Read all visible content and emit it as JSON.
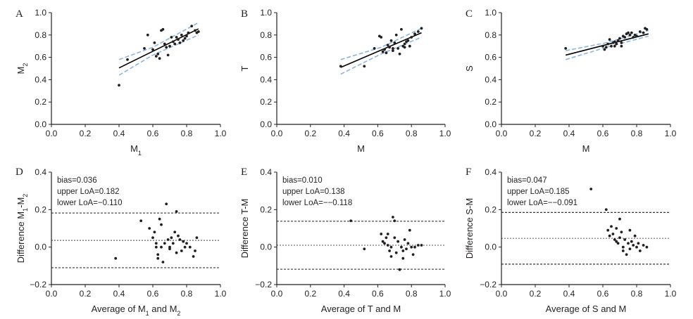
{
  "colors": {
    "data": "#231f20",
    "fit": "#000000",
    "ci": "#8ab6e0"
  },
  "chart_data": [
    {
      "panel": "A",
      "type": "scatter",
      "xlabel": "M",
      "xlabel_sub": "1",
      "ylabel": "M",
      "ylabel_sub": "2",
      "xlim": [
        0,
        1
      ],
      "ylim": [
        0,
        1
      ],
      "xticks": [
        "0.0",
        "0.2",
        "0.4",
        "0.6",
        "0.8",
        "1.0"
      ],
      "yticks": [
        "0.0",
        "0.2",
        "0.4",
        "0.6",
        "0.8",
        "1.0"
      ],
      "points": [
        [
          0.4,
          0.35
        ],
        [
          0.45,
          0.58
        ],
        [
          0.55,
          0.68
        ],
        [
          0.57,
          0.8
        ],
        [
          0.6,
          0.67
        ],
        [
          0.62,
          0.61
        ],
        [
          0.63,
          0.63
        ],
        [
          0.64,
          0.59
        ],
        [
          0.65,
          0.84
        ],
        [
          0.66,
          0.85
        ],
        [
          0.67,
          0.72
        ],
        [
          0.69,
          0.62
        ],
        [
          0.7,
          0.7
        ],
        [
          0.71,
          0.78
        ],
        [
          0.72,
          0.74
        ],
        [
          0.73,
          0.72
        ],
        [
          0.74,
          0.78
        ],
        [
          0.75,
          0.76
        ],
        [
          0.76,
          0.73
        ],
        [
          0.77,
          0.8
        ],
        [
          0.79,
          0.77
        ],
        [
          0.8,
          0.79
        ],
        [
          0.81,
          0.82
        ],
        [
          0.83,
          0.88
        ],
        [
          0.85,
          0.84
        ],
        [
          0.86,
          0.82
        ],
        [
          0.87,
          0.83
        ],
        [
          0.68,
          0.69
        ],
        [
          0.61,
          0.73
        ],
        [
          0.78,
          0.75
        ]
      ],
      "fit": {
        "x": [
          0.4,
          0.87
        ],
        "y": [
          0.505,
          0.855
        ]
      },
      "ci_upper": [
        [
          0.4,
          0.58
        ],
        [
          0.6,
          0.69
        ],
        [
          0.87,
          0.91
        ]
      ],
      "ci_lower": [
        [
          0.4,
          0.44
        ],
        [
          0.6,
          0.62
        ],
        [
          0.87,
          0.8
        ]
      ]
    },
    {
      "panel": "B",
      "type": "scatter",
      "xlabel": "M",
      "xlabel_sub": "",
      "ylabel": "T",
      "ylabel_sub": "",
      "xlim": [
        0,
        1
      ],
      "ylim": [
        0,
        1
      ],
      "xticks": [
        "0.0",
        "0.2",
        "0.4",
        "0.6",
        "0.8",
        "1.0"
      ],
      "yticks": [
        "0.0",
        "0.2",
        "0.4",
        "0.6",
        "0.8",
        "1.0"
      ],
      "points": [
        [
          0.38,
          0.52
        ],
        [
          0.52,
          0.52
        ],
        [
          0.58,
          0.68
        ],
        [
          0.61,
          0.79
        ],
        [
          0.62,
          0.78
        ],
        [
          0.63,
          0.65
        ],
        [
          0.64,
          0.67
        ],
        [
          0.66,
          0.71
        ],
        [
          0.67,
          0.69
        ],
        [
          0.68,
          0.75
        ],
        [
          0.69,
          0.66
        ],
        [
          0.7,
          0.73
        ],
        [
          0.71,
          0.8
        ],
        [
          0.72,
          0.68
        ],
        [
          0.73,
          0.63
        ],
        [
          0.74,
          0.85
        ],
        [
          0.75,
          0.7
        ],
        [
          0.76,
          0.72
        ],
        [
          0.77,
          0.74
        ],
        [
          0.78,
          0.75
        ],
        [
          0.79,
          0.7
        ],
        [
          0.8,
          0.78
        ],
        [
          0.82,
          0.81
        ],
        [
          0.84,
          0.83
        ],
        [
          0.86,
          0.86
        ],
        [
          0.65,
          0.64
        ],
        [
          0.69,
          0.68
        ],
        [
          0.76,
          0.69
        ]
      ],
      "fit": {
        "x": [
          0.38,
          0.86
        ],
        "y": [
          0.51,
          0.82
        ]
      },
      "ci_upper": [
        [
          0.38,
          0.58
        ],
        [
          0.62,
          0.69
        ],
        [
          0.86,
          0.86
        ]
      ],
      "ci_lower": [
        [
          0.38,
          0.45
        ],
        [
          0.62,
          0.63
        ],
        [
          0.86,
          0.78
        ]
      ]
    },
    {
      "panel": "C",
      "type": "scatter",
      "xlabel": "M",
      "xlabel_sub": "",
      "ylabel": "S",
      "ylabel_sub": "",
      "xlim": [
        0,
        1
      ],
      "ylim": [
        0,
        1
      ],
      "xticks": [
        "0.0",
        "0.2",
        "0.4",
        "0.6",
        "0.8",
        "1.0"
      ],
      "yticks": [
        "0.0",
        "0.2",
        "0.4",
        "0.6",
        "0.8",
        "1.0"
      ],
      "points": [
        [
          0.38,
          0.68
        ],
        [
          0.6,
          0.7
        ],
        [
          0.61,
          0.67
        ],
        [
          0.62,
          0.69
        ],
        [
          0.63,
          0.72
        ],
        [
          0.64,
          0.76
        ],
        [
          0.65,
          0.7
        ],
        [
          0.66,
          0.73
        ],
        [
          0.67,
          0.74
        ],
        [
          0.68,
          0.72
        ],
        [
          0.69,
          0.75
        ],
        [
          0.7,
          0.77
        ],
        [
          0.71,
          0.73
        ],
        [
          0.72,
          0.79
        ],
        [
          0.73,
          0.78
        ],
        [
          0.74,
          0.81
        ],
        [
          0.75,
          0.82
        ],
        [
          0.76,
          0.8
        ],
        [
          0.77,
          0.82
        ],
        [
          0.78,
          0.78
        ],
        [
          0.8,
          0.79
        ],
        [
          0.82,
          0.83
        ],
        [
          0.84,
          0.82
        ],
        [
          0.85,
          0.86
        ],
        [
          0.86,
          0.85
        ],
        [
          0.71,
          0.7
        ],
        [
          0.67,
          0.7
        ],
        [
          0.79,
          0.8
        ]
      ],
      "fit": {
        "x": [
          0.38,
          0.87
        ],
        "y": [
          0.62,
          0.81
        ]
      },
      "ci_upper": [
        [
          0.38,
          0.66
        ],
        [
          0.62,
          0.73
        ],
        [
          0.87,
          0.84
        ]
      ],
      "ci_lower": [
        [
          0.38,
          0.58
        ],
        [
          0.62,
          0.69
        ],
        [
          0.87,
          0.79
        ]
      ]
    },
    {
      "panel": "D",
      "type": "bland-altman",
      "xlabel": "Average of M",
      "xlabel_sub": "1",
      "xlabel_mid": " and M",
      "xlabel_sub2": "2",
      "ylabel": "Difference M",
      "ylabel_sub": "1",
      "ylabel_mid": "-M",
      "ylabel_sub2": "2",
      "xlim": [
        0,
        1
      ],
      "ylim": [
        -0.2,
        0.4
      ],
      "xticks": [
        "0.0",
        "0.2",
        "0.4",
        "0.6",
        "0.8",
        "1.0"
      ],
      "yticks": [
        "−0.2",
        "0.0",
        "0.2",
        "0.4"
      ],
      "bias": 0.036,
      "upper_loa": 0.182,
      "lower_loa": -0.11,
      "annotation": [
        "bias=0.036",
        "upper LoA=0.182",
        "lower LoA=−0.110"
      ],
      "points": [
        [
          0.38,
          -0.06
        ],
        [
          0.53,
          0.14
        ],
        [
          0.58,
          0.1
        ],
        [
          0.6,
          0.05
        ],
        [
          0.61,
          0.08
        ],
        [
          0.62,
          0.0
        ],
        [
          0.62,
          0.02
        ],
        [
          0.63,
          -0.04
        ],
        [
          0.63,
          -0.06
        ],
        [
          0.64,
          0.15
        ],
        [
          0.65,
          0.12
        ],
        [
          0.66,
          -0.08
        ],
        [
          0.67,
          0.02
        ],
        [
          0.68,
          0.23
        ],
        [
          0.69,
          0.04
        ],
        [
          0.7,
          0.0
        ],
        [
          0.7,
          -0.01
        ],
        [
          0.71,
          0.05
        ],
        [
          0.72,
          0.02
        ],
        [
          0.73,
          0.08
        ],
        [
          0.74,
          0.19
        ],
        [
          0.74,
          -0.03
        ],
        [
          0.75,
          0.06
        ],
        [
          0.76,
          0.04
        ],
        [
          0.77,
          -0.02
        ],
        [
          0.78,
          0.03
        ],
        [
          0.79,
          0.0
        ],
        [
          0.8,
          0.02
        ],
        [
          0.82,
          0.0
        ],
        [
          0.84,
          -0.05
        ],
        [
          0.86,
          0.05
        ],
        [
          0.85,
          -0.02
        ],
        [
          0.65,
          0.0
        ]
      ]
    },
    {
      "panel": "E",
      "type": "bland-altman",
      "xlabel": "Average of T and M",
      "xlabel_sub": "",
      "xlabel_mid": "",
      "xlabel_sub2": "",
      "ylabel": "Difference T-M",
      "ylabel_sub": "",
      "ylabel_mid": "",
      "ylabel_sub2": "",
      "xlim": [
        0,
        1
      ],
      "ylim": [
        -0.2,
        0.4
      ],
      "xticks": [
        "0.0",
        "0.2",
        "0.4",
        "0.6",
        "0.8",
        "1.0"
      ],
      "yticks": [
        "−0.2",
        "0.0",
        "0.2",
        "0.4"
      ],
      "bias": 0.01,
      "upper_loa": 0.138,
      "lower_loa": -0.118,
      "annotation": [
        "bias=0.010",
        "upper LoA=0.138",
        "lower LoA=−−0.118"
      ],
      "points": [
        [
          0.44,
          0.14
        ],
        [
          0.52,
          -0.01
        ],
        [
          0.62,
          0.07
        ],
        [
          0.63,
          0.03
        ],
        [
          0.64,
          0.02
        ],
        [
          0.65,
          0.05
        ],
        [
          0.66,
          0.07
        ],
        [
          0.67,
          -0.02
        ],
        [
          0.68,
          0.0
        ],
        [
          0.69,
          0.16
        ],
        [
          0.7,
          0.14
        ],
        [
          0.7,
          0.05
        ],
        [
          0.71,
          -0.03
        ],
        [
          0.72,
          0.03
        ],
        [
          0.73,
          -0.12
        ],
        [
          0.74,
          0.0
        ],
        [
          0.75,
          -0.02
        ],
        [
          0.76,
          0.04
        ],
        [
          0.77,
          -0.01
        ],
        [
          0.78,
          0.02
        ],
        [
          0.79,
          0.09
        ],
        [
          0.8,
          0.0
        ],
        [
          0.81,
          -0.04
        ],
        [
          0.82,
          0.0
        ],
        [
          0.84,
          0.01
        ],
        [
          0.86,
          0.01
        ],
        [
          0.68,
          -0.05
        ],
        [
          0.75,
          -0.06
        ],
        [
          0.66,
          0.01
        ]
      ]
    },
    {
      "panel": "F",
      "type": "bland-altman",
      "xlabel": "Average of S and M",
      "xlabel_sub": "",
      "xlabel_mid": "",
      "xlabel_sub2": "",
      "ylabel": "Difference S-M",
      "ylabel_sub": "",
      "ylabel_mid": "",
      "ylabel_sub2": "",
      "xlim": [
        0,
        1
      ],
      "ylim": [
        -0.2,
        0.4
      ],
      "xticks": [
        "0.0",
        "0.2",
        "0.4",
        "0.6",
        "0.8",
        "1.0"
      ],
      "yticks": [
        "−0.2",
        "0.0",
        "0.2",
        "0.4"
      ],
      "bias": 0.047,
      "upper_loa": 0.185,
      "lower_loa": -0.091,
      "annotation": [
        "bias=0.047",
        "upper LoA=0.185",
        "lower LoA=−−0.091"
      ],
      "points": [
        [
          0.53,
          0.31
        ],
        [
          0.62,
          0.2
        ],
        [
          0.63,
          0.09
        ],
        [
          0.64,
          0.06
        ],
        [
          0.65,
          0.11
        ],
        [
          0.66,
          0.07
        ],
        [
          0.67,
          0.04
        ],
        [
          0.68,
          0.1
        ],
        [
          0.69,
          0.02
        ],
        [
          0.7,
          0.15
        ],
        [
          0.7,
          0.05
        ],
        [
          0.71,
          0.08
        ],
        [
          0.72,
          0.0
        ],
        [
          0.73,
          0.04
        ],
        [
          0.74,
          -0.04
        ],
        [
          0.75,
          0.02
        ],
        [
          0.76,
          0.09
        ],
        [
          0.77,
          0.03
        ],
        [
          0.78,
          0.01
        ],
        [
          0.79,
          0.06
        ],
        [
          0.8,
          0.0
        ],
        [
          0.81,
          0.02
        ],
        [
          0.82,
          -0.02
        ],
        [
          0.84,
          0.01
        ],
        [
          0.86,
          0.0
        ],
        [
          0.72,
          -0.02
        ],
        [
          0.76,
          -0.01
        ],
        [
          0.68,
          0.03
        ]
      ]
    }
  ]
}
